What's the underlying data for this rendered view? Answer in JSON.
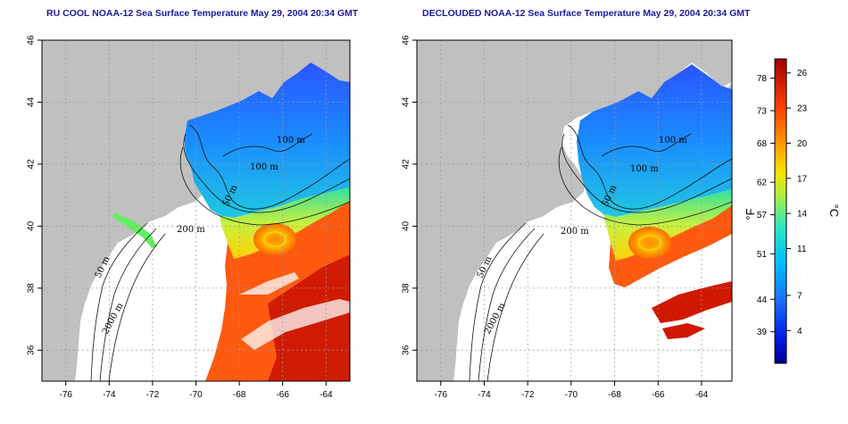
{
  "titles": {
    "left": "RU COOL NOAA-12 Sea Surface Temperature May 29, 2004 20:34 GMT",
    "right": "DECLOUDED NOAA-12 Sea Surface Temperature May 29, 2004 20:34 GMT"
  },
  "axes": {
    "x_ticks": [
      "-76",
      "-74",
      "-72",
      "-70",
      "-68",
      "-66",
      "-64"
    ],
    "y_ticks": [
      "36",
      "38",
      "40",
      "42",
      "44",
      "46"
    ],
    "x_range": [
      -77,
      -63
    ],
    "y_range": [
      35,
      46
    ]
  },
  "contour_labels": {
    "c50": "50 m",
    "c100": "100 m",
    "c200": "200 m",
    "c2000": "2000 m"
  },
  "colorbar": {
    "celsius_ticks": [
      "26",
      "23",
      "20",
      "17",
      "14",
      "11",
      "7",
      "4"
    ],
    "fahrenheit_ticks": [
      "78",
      "73",
      "68",
      "62",
      "57",
      "51",
      "44",
      "39"
    ],
    "celsius_unit": "°C",
    "fahrenheit_unit": "°F"
  },
  "colors": {
    "land": "#c0c0c0",
    "grid": "#9a9a9a",
    "title": "#1a1a9c"
  }
}
